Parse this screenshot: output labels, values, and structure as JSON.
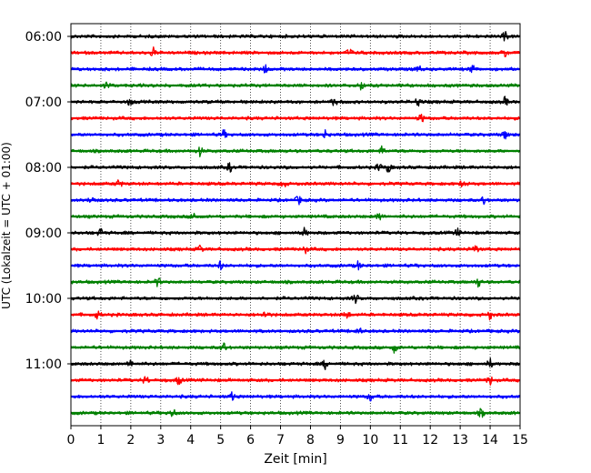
{
  "chart_data": {
    "type": "line",
    "title": "",
    "xlabel": "Zeit  [min]",
    "ylabel": "UTC (Lokalzeit = UTC + 01:00)",
    "xlim": [
      0,
      15
    ],
    "x_ticks": [
      0,
      1,
      2,
      3,
      4,
      5,
      6,
      7,
      8,
      9,
      10,
      11,
      12,
      13,
      14,
      15
    ],
    "x_tick_labels": [
      "0",
      "1",
      "2",
      "3",
      "4",
      "5",
      "6",
      "7",
      "8",
      "9",
      "10",
      "11",
      "12",
      "13",
      "14",
      "15"
    ],
    "y_tick_labels": [
      "06:00",
      "07:00",
      "08:00",
      "09:00",
      "10:00",
      "11:00"
    ],
    "y_tick_traces": [
      0,
      4,
      8,
      12,
      16,
      20
    ],
    "vertical_grid": true,
    "grid_style": "dotted",
    "trace_interval_minutes": 15,
    "trace_colors": [
      "#000000",
      "#ff0000",
      "#0000ff",
      "#008000"
    ],
    "series": [
      {
        "start": "06:00",
        "color": "#000000",
        "events": [
          14.5
        ]
      },
      {
        "start": "06:15",
        "color": "#ff0000",
        "events": [
          2.75,
          9.3,
          14.5
        ]
      },
      {
        "start": "06:30",
        "color": "#0000ff",
        "events": [
          6.5,
          11.6,
          13.4
        ]
      },
      {
        "start": "06:45",
        "color": "#008000",
        "events": [
          1.2,
          9.7
        ]
      },
      {
        "start": "07:00",
        "color": "#000000",
        "events": [
          2.0,
          8.8,
          11.6,
          14.5
        ]
      },
      {
        "start": "07:15",
        "color": "#ff0000",
        "events": [
          11.7
        ]
      },
      {
        "start": "07:30",
        "color": "#0000ff",
        "events": [
          5.1,
          8.5,
          14.5
        ]
      },
      {
        "start": "07:45",
        "color": "#008000",
        "events": [
          4.3,
          10.4
        ]
      },
      {
        "start": "08:00",
        "color": "#000000",
        "events": [
          5.3,
          10.3,
          10.6
        ]
      },
      {
        "start": "08:15",
        "color": "#ff0000",
        "events": [
          1.6,
          7.1,
          13.1
        ]
      },
      {
        "start": "08:30",
        "color": "#0000ff",
        "events": [
          0.7,
          7.6,
          13.8
        ]
      },
      {
        "start": "08:45",
        "color": "#008000",
        "events": [
          4.1,
          10.3
        ]
      },
      {
        "start": "09:00",
        "color": "#000000",
        "events": [
          1.0,
          7.8,
          12.9
        ]
      },
      {
        "start": "09:15",
        "color": "#ff0000",
        "events": [
          4.3,
          7.8,
          13.5
        ]
      },
      {
        "start": "09:30",
        "color": "#0000ff",
        "events": [
          5.0,
          9.6
        ]
      },
      {
        "start": "09:45",
        "color": "#008000",
        "events": [
          2.9,
          13.6
        ]
      },
      {
        "start": "10:00",
        "color": "#000000",
        "events": [
          9.5
        ]
      },
      {
        "start": "10:15",
        "color": "#ff0000",
        "events": [
          0.9,
          6.5,
          9.2,
          14.0
        ]
      },
      {
        "start": "10:30",
        "color": "#0000ff",
        "events": [
          9.6
        ]
      },
      {
        "start": "10:45",
        "color": "#008000",
        "events": [
          5.1,
          10.8
        ]
      },
      {
        "start": "11:00",
        "color": "#000000",
        "events": [
          2.0,
          8.5,
          14.0
        ]
      },
      {
        "start": "11:15",
        "color": "#ff0000",
        "events": [
          2.5,
          3.6,
          14.0
        ]
      },
      {
        "start": "11:30",
        "color": "#0000ff",
        "events": [
          5.4,
          10.0
        ]
      },
      {
        "start": "11:45",
        "color": "#008000",
        "events": [
          3.4,
          13.7
        ]
      }
    ]
  }
}
